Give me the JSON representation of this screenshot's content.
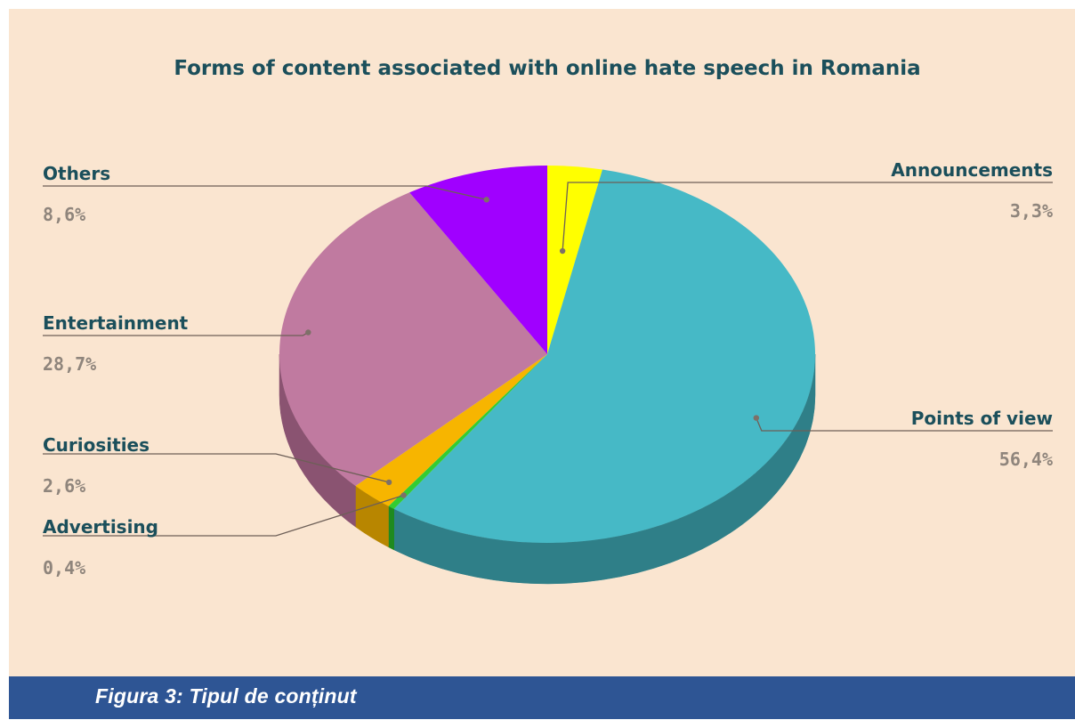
{
  "chart_data": {
    "type": "pie",
    "title": "Forms of content associated with online hate speech in Romania",
    "slices": [
      {
        "name": "Announcements",
        "value_label": "3,3%",
        "value": 3.3,
        "color": "#ffff00",
        "side_color": "#b3b300"
      },
      {
        "name": "Points of view",
        "value_label": "56,4%",
        "value": 56.4,
        "color": "#46b9c6",
        "side_color": "#2f7f88"
      },
      {
        "name": "Advertising",
        "value_label": "0,4%",
        "value": 0.4,
        "color": "#33cc33",
        "side_color": "#1f8a1f"
      },
      {
        "name": "Curiosities",
        "value_label": "2,6%",
        "value": 2.6,
        "color": "#f7b500",
        "side_color": "#b88600"
      },
      {
        "name": "Entertainment",
        "value_label": "28,7%",
        "value": 28.7,
        "color": "#c07aa0",
        "side_color": "#8a5371"
      },
      {
        "name": "Others",
        "value_label": "8,6%",
        "value": 8.6,
        "color": "#a000ff",
        "side_color": "#6e00b0"
      }
    ],
    "background": "#fae5d0",
    "style": "3d-pie"
  },
  "caption": "Figura 3: Tipul de conținut"
}
